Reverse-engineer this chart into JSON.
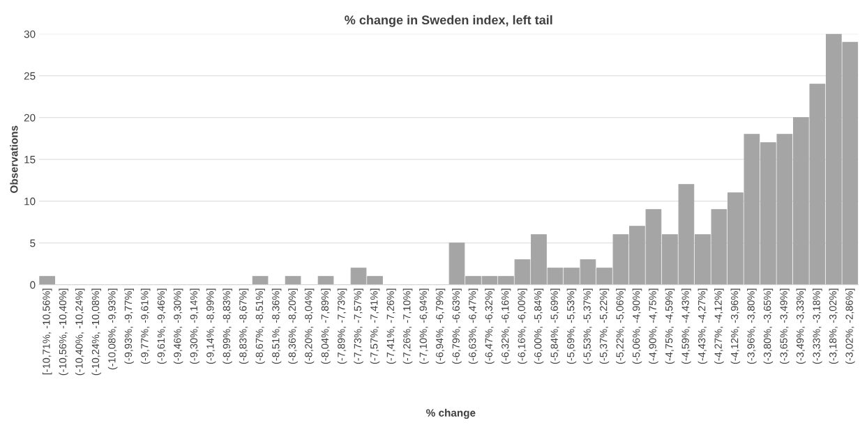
{
  "chart_data": {
    "type": "bar",
    "title": "% change in Sweden index, left tail",
    "xlabel": "% change",
    "ylabel": "Observations",
    "categories": [
      "[-10,71%, -10,56%]",
      "(-10,56%, -10,40%]",
      "(-10,40%, -10,24%]",
      "(-10,24%, -10,08%]",
      "(-10,08%, -9,93%]",
      "(-9,93%, -9,77%]",
      "(-9,77%, -9,61%]",
      "(-9,61%, -9,46%]",
      "(-9,46%, -9,30%]",
      "(-9,30%, -9,14%]",
      "(-9,14%, -8,99%]",
      "(-8,99%, -8,83%]",
      "(-8,83%, -8,67%]",
      "(-8,67%, -8,51%]",
      "(-8,51%, -8,36%]",
      "(-8,36%, -8,20%]",
      "(-8,20%, -8,04%]",
      "(-8,04%, -7,89%]",
      "(-7,89%, -7,73%]",
      "(-7,73%, -7,57%]",
      "(-7,57%, -7,41%]",
      "(-7,41%, -7,26%]",
      "(-7,26%, -7,10%]",
      "(-7,10%, -6,94%]",
      "(-6,94%, -6,79%]",
      "(-6,79%, -6,63%]",
      "(-6,63%, -6,47%]",
      "(-6,47%, -6,32%]",
      "(-6,32%, -6,16%]",
      "(-6,16%, -6,00%]",
      "(-6,00%, -5,84%]",
      "(-5,84%, -5,69%]",
      "(-5,69%, -5,53%]",
      "(-5,53%, -5,37%]",
      "(-5,37%, -5,22%]",
      "(-5,22%, -5,06%]",
      "(-5,06%, -4,90%]",
      "(-4,90%, -4,75%]",
      "(-4,75%, -4,59%]",
      "(-4,59%, -4,43%]",
      "(-4,43%, -4,27%]",
      "(-4,27%, -4,12%]",
      "(-4,12%, -3,96%]",
      "(-3,96%, -3,80%]",
      "(-3,80%, -3,65%]",
      "(-3,65%, -3,49%]",
      "(-3,49%, -3,33%]",
      "(-3,33%, -3,18%]",
      "(-3,18%, -3,02%]",
      "(-3,02%, -2,86%]"
    ],
    "values": [
      1,
      0,
      0,
      0,
      0,
      0,
      0,
      0,
      0,
      0,
      0,
      0,
      0,
      1,
      0,
      1,
      0,
      1,
      0,
      2,
      1,
      0,
      0,
      0,
      0,
      5,
      1,
      1,
      1,
      3,
      6,
      2,
      2,
      3,
      2,
      6,
      7,
      9,
      6,
      12,
      6,
      9,
      11,
      18,
      17,
      18,
      20,
      24,
      30,
      29
    ],
    "color": "#a5a5a5",
    "ylim": [
      0,
      30
    ],
    "yticks": [
      0,
      5,
      10,
      15,
      20,
      25,
      30
    ],
    "grid": "y"
  }
}
